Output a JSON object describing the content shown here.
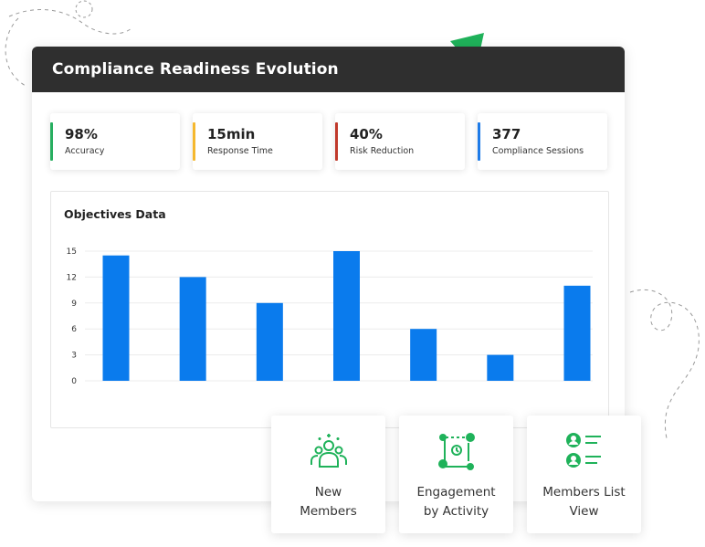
{
  "header": {
    "title": "Compliance Readiness Evolution"
  },
  "kpis": [
    {
      "value": "98%",
      "label": "Accuracy",
      "color": "#27ae60"
    },
    {
      "value": "15min",
      "label": "Response Time",
      "color": "#f5b82e"
    },
    {
      "value": "40%",
      "label": "Risk Reduction",
      "color": "#c0392b"
    },
    {
      "value": "377",
      "label": "Compliance Sessions",
      "color": "#1e7be8"
    }
  ],
  "chart": {
    "title": "Objectives Data",
    "bar_color": "#0a7bed"
  },
  "chart_data": {
    "type": "bar",
    "title": "Objectives Data",
    "categories": [
      "",
      "",
      "",
      "",
      "",
      "",
      ""
    ],
    "values": [
      14.5,
      12,
      9,
      15,
      6,
      3,
      11
    ],
    "yticks": [
      0,
      3,
      6,
      9,
      12,
      15
    ],
    "ylim": [
      0,
      15
    ],
    "grid": true
  },
  "actions": [
    {
      "line1": "New",
      "line2": "Members",
      "icon": "members-group-icon"
    },
    {
      "line1": "Engagement",
      "line2": "by Activity",
      "icon": "engagement-flow-icon"
    },
    {
      "line1": "Members List",
      "line2": "View",
      "icon": "members-list-icon"
    }
  ],
  "colors": {
    "accent_green": "#1fb25a",
    "header_bg": "#2f2f2f"
  }
}
